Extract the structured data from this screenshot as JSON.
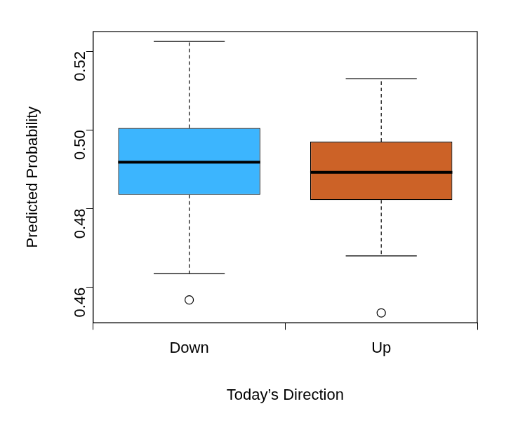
{
  "chart_data": {
    "type": "box",
    "x_label": "Today’s Direction",
    "y_label": "Predicted Probability",
    "categories": [
      "Down",
      "Up"
    ],
    "boxes": [
      {
        "low": 0.4635,
        "q1": 0.4835,
        "median": 0.4918,
        "q3": 0.5005,
        "high": 0.5225,
        "outliers": [
          0.4568
        ]
      },
      {
        "low": 0.468,
        "q1": 0.4822,
        "median": 0.4892,
        "q3": 0.497,
        "high": 0.513,
        "outliers": [
          0.4535
        ]
      }
    ],
    "colors": [
      "#3cb5fe",
      "#cc6227"
    ],
    "ylim": [
      0.451,
      0.525
    ],
    "yticks": [
      0.46,
      0.48,
      {
        "value": 0.5,
        "label": "0.50"
      },
      0.52
    ],
    "grid": false
  }
}
